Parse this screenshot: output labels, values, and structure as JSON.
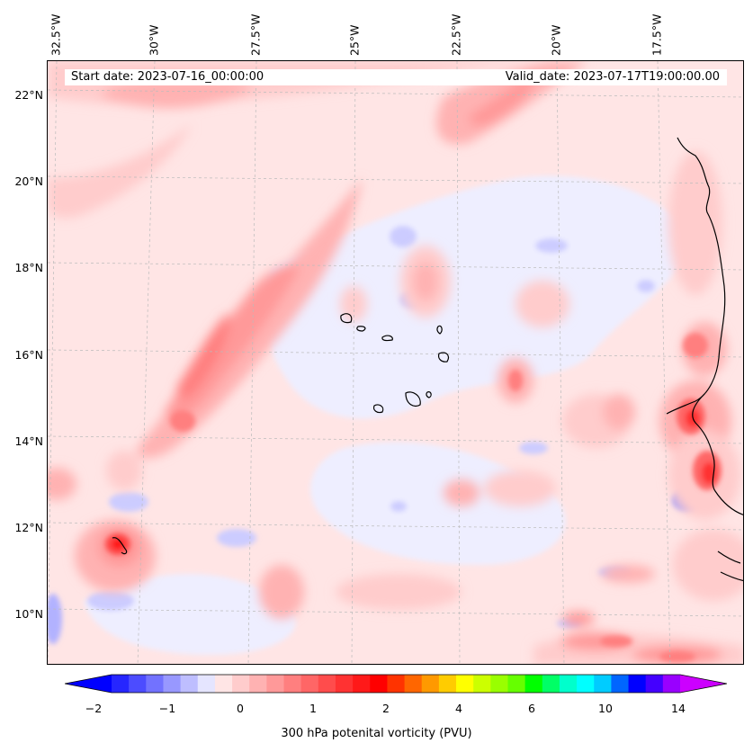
{
  "map": {
    "start_date": "Start date: 2023-07-16_00:00:00",
    "valid_date": "Valid_date: 2023-07-17T19:00:00.00",
    "lon_labels": [
      "32.5°W",
      "30°W",
      "27.5°W",
      "25°W",
      "22.5°W",
      "20°W",
      "17.5°W"
    ],
    "lat_labels": [
      "22°N",
      "20°N",
      "18°N",
      "16°N",
      "14°N",
      "12°N",
      "10°N"
    ],
    "colorbar": {
      "label": "300 hPa potenital vorticity (PVU)",
      "tick_labels": [
        "−2",
        "−1",
        "0",
        "1",
        "2",
        "4",
        "6",
        "10",
        "14"
      ],
      "colors": [
        "#0000ff",
        "#2626ff",
        "#4c4cff",
        "#7272ff",
        "#9898ff",
        "#bebeff",
        "#e5e5ff",
        "#ffe5e5",
        "#ffcccc",
        "#ffb2b2",
        "#ff9999",
        "#ff7f7f",
        "#ff6666",
        "#ff4c4c",
        "#ff3232",
        "#ff1919",
        "#ff0000",
        "#ff3300",
        "#ff6600",
        "#ff9900",
        "#ffcc00",
        "#ffff00",
        "#ccff00",
        "#99ff00",
        "#66ff00",
        "#00ff00",
        "#00ff66",
        "#00ffcc",
        "#00ffff",
        "#00ccff",
        "#0066ff",
        "#0000ff",
        "#4400ff",
        "#9900ff",
        "#cc00ff"
      ]
    }
  }
}
